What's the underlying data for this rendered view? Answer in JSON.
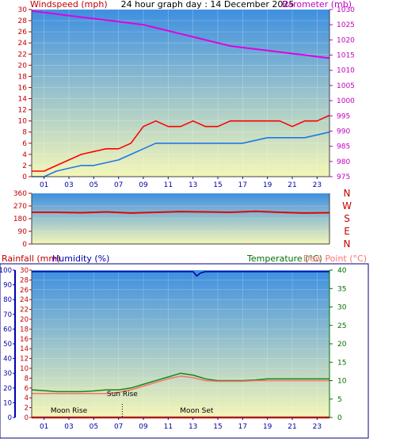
{
  "title": "24 hour graph day : 14 December 2025",
  "colors": {
    "wind_speed": "#ff0000",
    "wind_avg": "#1e78e6",
    "barometer": "#e000e0",
    "direction": "#e60000",
    "temperature": "#138a13",
    "dew_point": "#ff7070",
    "humidity": "#0000a0",
    "rainfall": "#ff0000",
    "axis_red": "#c00000",
    "axis_magenta": "#c000c0",
    "axis_blue": "#0000b0",
    "axis_green": "#007000",
    "sky_top": "#3e8fe0",
    "sky_bottom": "#f4f6b8"
  },
  "chart_data": [
    {
      "id": "wind_baro",
      "type": "line",
      "left_label": "Windspeed (mph)",
      "right_label": "Barometer (mb)",
      "left_ylim": [
        0,
        30
      ],
      "left_ticks": [
        0,
        2,
        4,
        6,
        8,
        10,
        12,
        14,
        16,
        18,
        20,
        22,
        24,
        26,
        28,
        30
      ],
      "right_ylim": [
        975,
        1030
      ],
      "right_ticks": [
        975,
        980,
        985,
        990,
        995,
        1000,
        1005,
        1010,
        1015,
        1020,
        1025,
        1030
      ],
      "xlim": [
        0,
        24
      ],
      "x_ticks": [
        "01",
        "03",
        "05",
        "07",
        "09",
        "11",
        "13",
        "15",
        "17",
        "19",
        "21",
        "23"
      ],
      "series": [
        {
          "axis": "left",
          "x": [
            0,
            1,
            2,
            3,
            4,
            5,
            6,
            7,
            8,
            9,
            10,
            11,
            12,
            13,
            14,
            15,
            16,
            17,
            18,
            19,
            20,
            21,
            22,
            23,
            24
          ],
          "values": [
            1,
            1,
            2,
            3,
            4,
            4.5,
            5,
            5,
            6,
            9,
            10,
            9,
            9,
            10,
            9,
            9,
            10,
            10,
            10,
            10,
            10,
            9,
            10,
            10,
            11
          ]
        },
        {
          "axis": "left",
          "x": [
            0,
            1,
            2,
            3,
            4,
            5,
            6,
            7,
            8,
            9,
            10,
            11,
            12,
            13,
            14,
            15,
            16,
            17,
            18,
            19,
            20,
            21,
            22,
            23,
            24
          ],
          "values": [
            0,
            0,
            1,
            1.5,
            2,
            2,
            2.5,
            3,
            4,
            5,
            6,
            6,
            6,
            6,
            6,
            6,
            6,
            6,
            6.5,
            7,
            7,
            7,
            7,
            7.5,
            8
          ]
        },
        {
          "axis": "right",
          "x": [
            0,
            1,
            2,
            3,
            4,
            5,
            6,
            7,
            8,
            9,
            10,
            11,
            12,
            13,
            14,
            15,
            16,
            17,
            18,
            19,
            20,
            21,
            22,
            23,
            24
          ],
          "values": [
            1029.5,
            1029,
            1028.5,
            1028,
            1027.5,
            1027,
            1026.5,
            1026,
            1025.5,
            1025,
            1024,
            1023,
            1022,
            1021,
            1020,
            1019,
            1018,
            1017.5,
            1017,
            1016.5,
            1016,
            1015.5,
            1015,
            1014.5,
            1014
          ]
        }
      ]
    },
    {
      "id": "direction",
      "type": "line",
      "left_ylim": [
        0,
        360
      ],
      "left_ticks": [
        0,
        90,
        180,
        270,
        360
      ],
      "compass": [
        "N",
        "W",
        "S",
        "E",
        "N"
      ],
      "xlim": [
        0,
        24
      ],
      "series": [
        {
          "x": [
            0,
            2,
            4,
            6,
            8,
            10,
            12,
            14,
            16,
            18,
            20,
            22,
            24
          ],
          "values": [
            225,
            225,
            222,
            228,
            220,
            225,
            230,
            228,
            225,
            232,
            225,
            220,
            222
          ]
        }
      ]
    },
    {
      "id": "temp_hum_rain",
      "type": "line",
      "left_label_rain": "Rainfall (mm)",
      "left_label_hum": "Humidity (%)",
      "right_label_temp": "Temperature (°C)",
      "right_label_dew": "Dew Point (°C)",
      "rain_ylim": [
        0,
        30
      ],
      "rain_ticks": [
        0,
        2,
        4,
        6,
        8,
        10,
        12,
        14,
        16,
        18,
        20,
        22,
        24,
        26,
        28,
        30
      ],
      "hum_ylim": [
        0,
        100
      ],
      "hum_ticks": [
        0,
        10,
        20,
        30,
        40,
        50,
        60,
        70,
        80,
        90,
        100
      ],
      "temp_ylim": [
        0,
        40
      ],
      "temp_ticks": [
        0,
        5,
        10,
        15,
        20,
        25,
        30,
        35,
        40
      ],
      "xlim": [
        0,
        24
      ],
      "x_ticks": [
        "01",
        "03",
        "05",
        "07",
        "09",
        "11",
        "13",
        "15",
        "17",
        "19",
        "21",
        "23"
      ],
      "annotations": [
        {
          "text": "Moon Rise",
          "x": 3
        },
        {
          "text": "Sun Rise",
          "x": 7.3
        },
        {
          "text": "Moon Set",
          "x": 13.3
        }
      ],
      "series": [
        {
          "axis": "temp",
          "x": [
            0,
            1,
            2,
            3,
            4,
            5,
            6,
            7,
            8,
            9,
            10,
            11,
            12,
            13,
            14,
            15,
            16,
            17,
            18,
            19,
            20,
            21,
            22,
            23,
            24
          ],
          "values": [
            7.5,
            7.3,
            7.0,
            7.0,
            7.0,
            7.2,
            7.5,
            7.5,
            8.0,
            9.0,
            10.0,
            11.0,
            12.0,
            11.5,
            10.5,
            10.0,
            10.0,
            10.0,
            10.2,
            10.5,
            10.5,
            10.5,
            10.5,
            10.5,
            10.5
          ]
        },
        {
          "axis": "temp",
          "x": [
            0,
            1,
            2,
            3,
            4,
            5,
            6,
            7,
            8,
            9,
            10,
            11,
            12,
            13,
            14,
            15,
            16,
            17,
            18,
            19,
            20,
            21,
            22,
            23,
            24
          ],
          "values": [
            6.5,
            6.5,
            6.5,
            6.5,
            6.5,
            6.5,
            6.5,
            6.8,
            7.5,
            8.5,
            9.5,
            10.5,
            11.2,
            10.8,
            10.0,
            9.8,
            9.8,
            9.8,
            10.0,
            10.0,
            10.0,
            10.0,
            10.0,
            10.0,
            10.0
          ]
        },
        {
          "axis": "hum",
          "x": [
            0,
            1,
            2,
            3,
            4,
            5,
            6,
            7,
            8,
            9,
            10,
            11,
            12,
            13,
            13.3,
            13.6,
            14,
            15,
            16,
            17,
            18,
            19,
            20,
            21,
            22,
            23,
            24
          ],
          "values": [
            99,
            99,
            99,
            99,
            99,
            99,
            99,
            99,
            99,
            99,
            99,
            99,
            99,
            99,
            96,
            98,
            99,
            99,
            99,
            99,
            99,
            99,
            99,
            99,
            99,
            99,
            99
          ]
        },
        {
          "axis": "rain",
          "x": [
            0,
            24
          ],
          "values": [
            0,
            0
          ]
        }
      ]
    }
  ]
}
